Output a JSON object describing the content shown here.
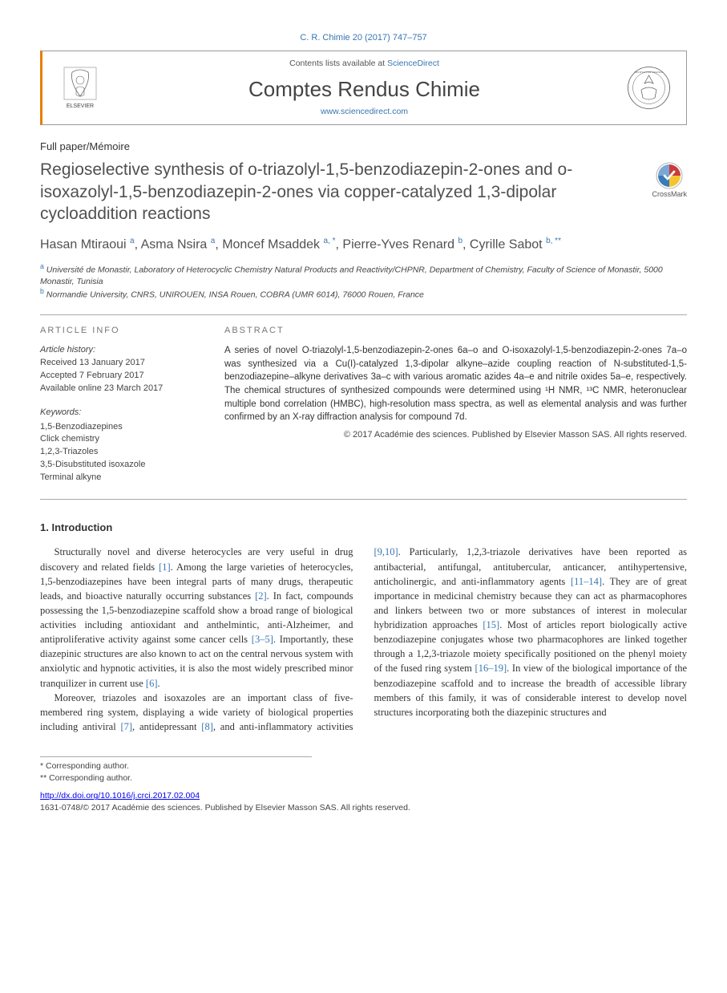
{
  "header_citation": "C. R. Chimie 20 (2017) 747–757",
  "banner": {
    "contents_prefix": "Contents lists available at ",
    "contents_link": "ScienceDirect",
    "journal_name": "Comptes Rendus Chimie",
    "journal_url": "www.sciencedirect.com",
    "publisher_logo_alt": "ELSEVIER",
    "academie_logo_alt": "Académie des sciences"
  },
  "paper_type": "Full paper/Mémoire",
  "title": "Regioselective synthesis of o-triazolyl-1,5-benzodiazepin-2-ones and o-isoxazolyl-1,5-benzodiazepin-2-ones via copper-catalyzed 1,3-dipolar cycloaddition reactions",
  "crossmark_label": "CrossMark",
  "authors_html": "Hasan Mtiraoui <sup>a</sup>, Asma Nsira <sup>a</sup>, Moncef Msaddek <sup>a, *</sup>, Pierre-Yves Renard <sup>b</sup>, Cyrille Sabot <sup>b, **</sup>",
  "affiliations": [
    {
      "marker": "a",
      "text": "Université de Monastir, Laboratory of Heterocyclic Chemistry Natural Products and Reactivity/CHPNR, Department of Chemistry, Faculty of Science of Monastir, 5000 Monastir, Tunisia"
    },
    {
      "marker": "b",
      "text": "Normandie University, CNRS, UNIROUEN, INSA Rouen, COBRA (UMR 6014), 76000 Rouen, France"
    }
  ],
  "article_info": {
    "heading": "ARTICLE INFO",
    "history_label": "Article history:",
    "received": "Received 13 January 2017",
    "accepted": "Accepted 7 February 2017",
    "online": "Available online 23 March 2017",
    "keywords_label": "Keywords:",
    "keywords": [
      "1,5-Benzodiazepines",
      "Click chemistry",
      "1,2,3-Triazoles",
      "3,5-Disubstituted isoxazole",
      "Terminal alkyne"
    ]
  },
  "abstract": {
    "heading": "ABSTRACT",
    "text": "A series of novel O-triazolyl-1,5-benzodiazepin-2-ones 6a–o and O-isoxazolyl-1,5-benzodiazepin-2-ones 7a–o was synthesized via a Cu(I)-catalyzed 1,3-dipolar alkyne–azide coupling reaction of N-substituted-1,5-benzodiazepine–alkyne derivatives 3a–c with various aromatic azides 4a–e and nitrile oxides 5a–e, respectively. The chemical structures of synthesized compounds were determined using ¹H NMR, ¹³C NMR, heteronuclear multiple bond correlation (HMBC), high-resolution mass spectra, as well as elemental analysis and was further confirmed by an X-ray diffraction analysis for compound 7d.",
    "copyright": "© 2017 Académie des sciences. Published by Elsevier Masson SAS. All rights reserved."
  },
  "section_heading": "1. Introduction",
  "body_paragraphs": [
    "Structurally novel and diverse heterocycles are very useful in drug discovery and related fields <a href='#'>[1]</a>. Among the large varieties of heterocycles, 1,5-benzodiazepines have been integral parts of many drugs, therapeutic leads, and bioactive naturally occurring substances <a href='#'>[2]</a>. In fact, compounds possessing the 1,5-benzodiazepine scaffold show a broad range of biological activities including antioxidant and anthelmintic, anti-Alzheimer, and antiproliferative activity against some cancer cells <a href='#'>[3–5]</a>. Importantly, these diazepinic structures are also known to act on the central nervous system with anxiolytic and hypnotic activities, it is also the most widely prescribed minor tranquilizer in current use <a href='#'>[6]</a>.",
    "Moreover, triazoles and isoxazoles are an important class of five-membered ring system, displaying a wide variety of biological properties including antiviral <a href='#'>[7]</a>, antidepressant <a href='#'>[8]</a>, and anti-inflammatory activities <a href='#'>[9,10]</a>. Particularly, 1,2,3-triazole derivatives have been reported as antibacterial, antifungal, antitubercular, anticancer, antihypertensive, anticholinergic, and anti-inflammatory agents <a href='#'>[11–14]</a>. They are of great importance in medicinal chemistry because they can act as pharmacophores and linkers between two or more substances of interest in molecular hybridization approaches <a href='#'>[15]</a>. Most of articles report biologically active benzodiazepine conjugates whose two pharmacophores are linked together through a 1,2,3-triazole moiety specifically positioned on the phenyl moiety of the fused ring system <a href='#'>[16–19]</a>. In view of the biological importance of the benzodiazepine scaffold and to increase the breadth of accessible library members of this family, it was of considerable interest to develop novel structures incorporating both the diazepinic structures and"
  ],
  "footnotes": [
    "* Corresponding author.",
    "** Corresponding author."
  ],
  "doi": "http://dx.doi.org/10.1016/j.crci.2017.02.004",
  "issn_line": "1631-0748/© 2017 Académie des sciences. Published by Elsevier Masson SAS. All rights reserved.",
  "colors": {
    "link": "#3976b1",
    "accent": "#e87e04",
    "text": "#333333",
    "muted": "#777777",
    "border": "#aaaaaa"
  }
}
